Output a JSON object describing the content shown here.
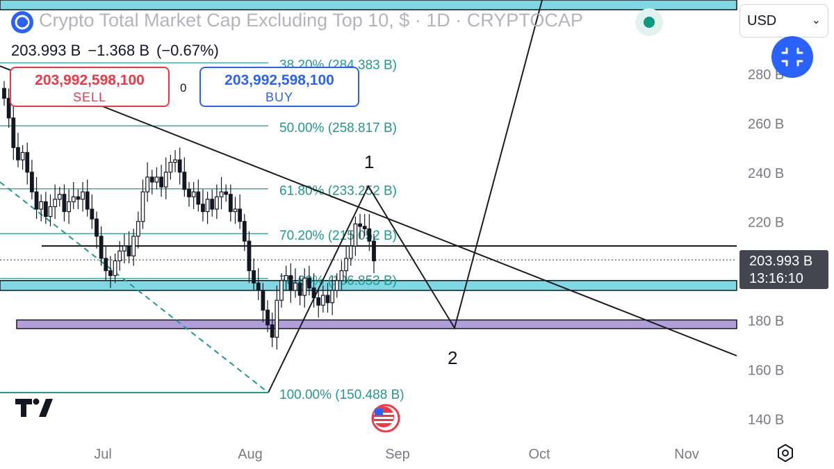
{
  "header": {
    "title": "Crypto Total Market Cap Excluding Top 10, $ · 1D · CRYPTOCAP",
    "last": "203.993 B",
    "change": "−1.368 B",
    "change_pct": "(−0.67%)"
  },
  "trade": {
    "sell_value": "203,992,598,100",
    "sell_label": "SELL",
    "spread": "0",
    "buy_value": "203,992,598,100",
    "buy_label": "BUY"
  },
  "currency": {
    "value": "USD",
    "chevron": "⌄"
  },
  "price_tag": {
    "price": "203.993 B",
    "countdown": "13:16:10"
  },
  "icons": [
    "brand-logo-icon",
    "live-status-icon",
    "collapse-icon",
    "tradingview-logo-icon",
    "us-flag-icon",
    "settings-icon"
  ],
  "colors": {
    "fib": "#22998e",
    "zone_cyan": "#7fd8e4",
    "zone_purple": "#b39ddb",
    "up": "#000000"
  },
  "chart_data": {
    "type": "candlestick",
    "y_axis": {
      "ticks": [
        "280 B",
        "260 B",
        "240 B",
        "220 B",
        "180 B",
        "160 B",
        "140 B"
      ],
      "range": [
        133,
        300
      ],
      "unit": "B"
    },
    "x_axis": {
      "ticks": [
        "Jul",
        "Aug",
        "Sep",
        "Oct",
        "Nov"
      ]
    },
    "fib_levels": [
      {
        "label": "38.20% (284.383 B)",
        "value": 284.383
      },
      {
        "label": "50.00% (258.817 B)",
        "value": 258.817
      },
      {
        "label": "61.80% (233.252 B)",
        "value": 233.252
      },
      {
        "label": "70.20% (215.052 B)",
        "value": 215.052
      },
      {
        "label": "78.60% (196.853 B)",
        "value": 196.853
      },
      {
        "label": "100.00% (150.488 B)",
        "value": 150.488
      }
    ],
    "wave_labels": [
      "1",
      "2"
    ],
    "current_price": 203.993,
    "zones": [
      {
        "name": "cyan",
        "low": 192,
        "high": 196
      },
      {
        "name": "purple",
        "low": 176.5,
        "high": 180
      }
    ],
    "horizontal_line": 210,
    "closes": [
      270,
      262,
      250,
      245,
      248,
      240,
      232,
      225,
      228,
      222,
      226,
      229,
      231,
      224,
      228,
      230,
      229,
      232,
      225,
      221,
      214,
      205,
      200,
      198,
      204,
      208,
      210,
      206,
      214,
      220,
      232,
      238,
      236,
      238,
      234,
      240,
      244,
      245,
      240,
      233,
      230,
      232,
      227,
      224,
      229,
      225,
      230,
      232,
      231,
      224,
      225,
      220,
      212,
      200,
      195,
      192,
      184,
      178,
      173,
      188,
      196,
      198,
      192,
      195,
      190,
      197,
      193,
      189,
      186,
      190,
      187,
      192,
      196,
      200,
      205,
      210,
      219,
      218,
      217,
      212,
      204
    ]
  }
}
